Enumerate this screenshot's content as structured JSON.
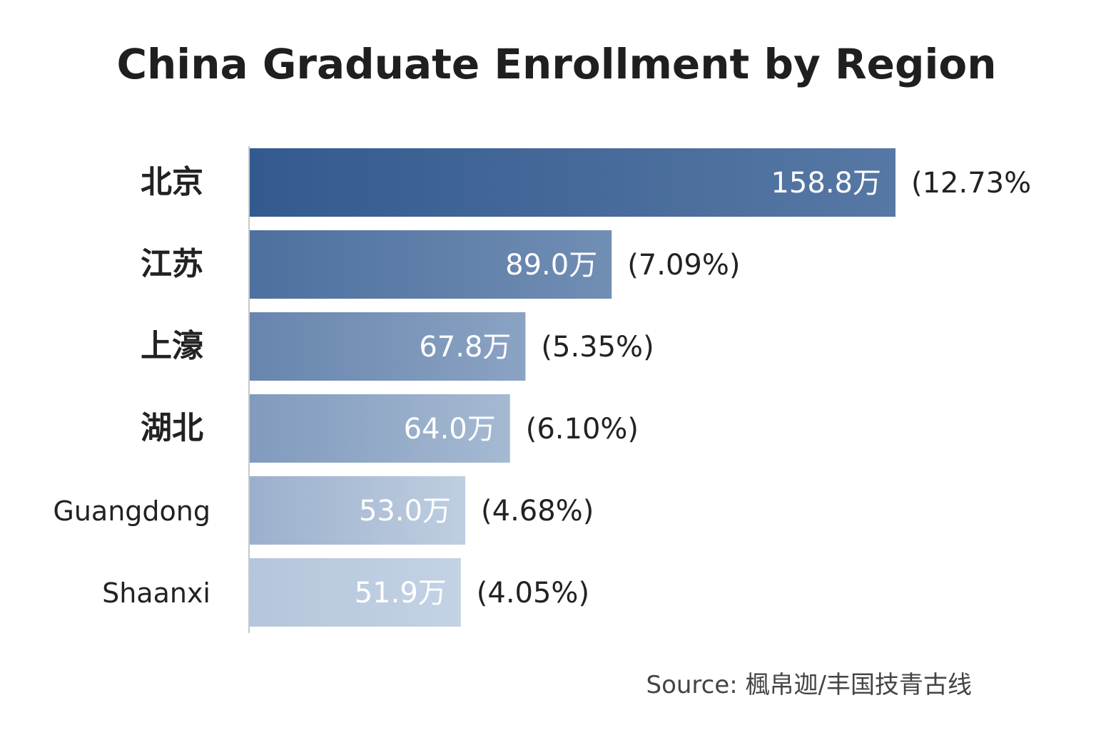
{
  "title": "China Graduate Enrollment by Region",
  "source": "Source: 楓帛迦/丰国技青古线",
  "colors": {
    "bar_dark": "#335a8f",
    "bar_light": "#c3d2e4",
    "value_text": "#ffffff",
    "label_text": "#222222"
  },
  "chart_data": {
    "type": "bar",
    "orientation": "horizontal",
    "title": "China Graduate Enrollment by Region",
    "categories": [
      "北京",
      "江苏",
      "上濠",
      "湖北",
      "Guangdong",
      "Shaanxi"
    ],
    "values": [
      158.8,
      89.0,
      67.8,
      64.0,
      53.0,
      51.9
    ],
    "value_labels": [
      "158.8万",
      "89.0万",
      "67.8万",
      "64.0万",
      "53.0万",
      "51.9万"
    ],
    "percent_labels": [
      "(12.73%",
      "(7.09%)",
      "(5.35%)",
      "(6.10%)",
      "(4.68%)",
      "(4.05%)"
    ],
    "unit": "万",
    "xlim": [
      0,
      158.8
    ],
    "grid": false,
    "legend": "none"
  }
}
